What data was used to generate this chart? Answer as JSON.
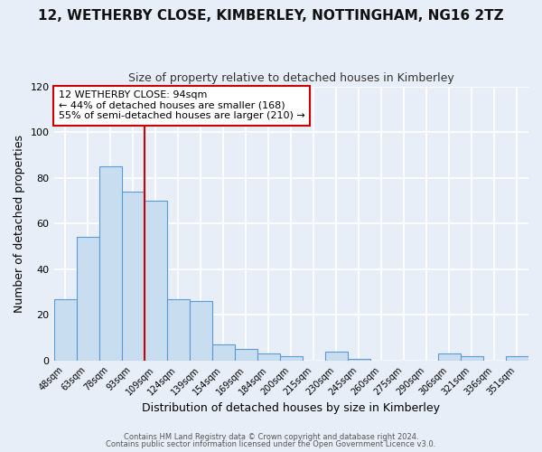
{
  "title": "12, WETHERBY CLOSE, KIMBERLEY, NOTTINGHAM, NG16 2TZ",
  "subtitle": "Size of property relative to detached houses in Kimberley",
  "xlabel": "Distribution of detached houses by size in Kimberley",
  "ylabel": "Number of detached properties",
  "bins": [
    "48sqm",
    "63sqm",
    "78sqm",
    "93sqm",
    "109sqm",
    "124sqm",
    "139sqm",
    "154sqm",
    "169sqm",
    "184sqm",
    "200sqm",
    "215sqm",
    "230sqm",
    "245sqm",
    "260sqm",
    "275sqm",
    "290sqm",
    "306sqm",
    "321sqm",
    "336sqm",
    "351sqm"
  ],
  "values": [
    27,
    54,
    85,
    74,
    70,
    27,
    26,
    7,
    5,
    3,
    2,
    0,
    4,
    1,
    0,
    0,
    0,
    3,
    2,
    0,
    2
  ],
  "bar_color_fill": "#c9ddf0",
  "bar_color_edge": "#5b9bd5",
  "bg_color": "#e8eef7",
  "plot_bg_color": "#e8eef7",
  "grid_color": "#ffffff",
  "vline_color": "#cc0000",
  "vline_bin_index": 3,
  "annotation_title": "12 WETHERBY CLOSE: 94sqm",
  "annotation_line1": "← 44% of detached houses are smaller (168)",
  "annotation_line2": "55% of semi-detached houses are larger (210) →",
  "annotation_box_edge_color": "#cc0000",
  "annotation_box_face_color": "#ffffff",
  "ylim": [
    0,
    120
  ],
  "yticks": [
    0,
    20,
    40,
    60,
    80,
    100,
    120
  ],
  "title_fontsize": 11,
  "subtitle_fontsize": 9,
  "axis_label_fontsize": 9,
  "tick_fontsize": 8,
  "footer1": "Contains HM Land Registry data © Crown copyright and database right 2024.",
  "footer2": "Contains public sector information licensed under the Open Government Licence v3.0."
}
